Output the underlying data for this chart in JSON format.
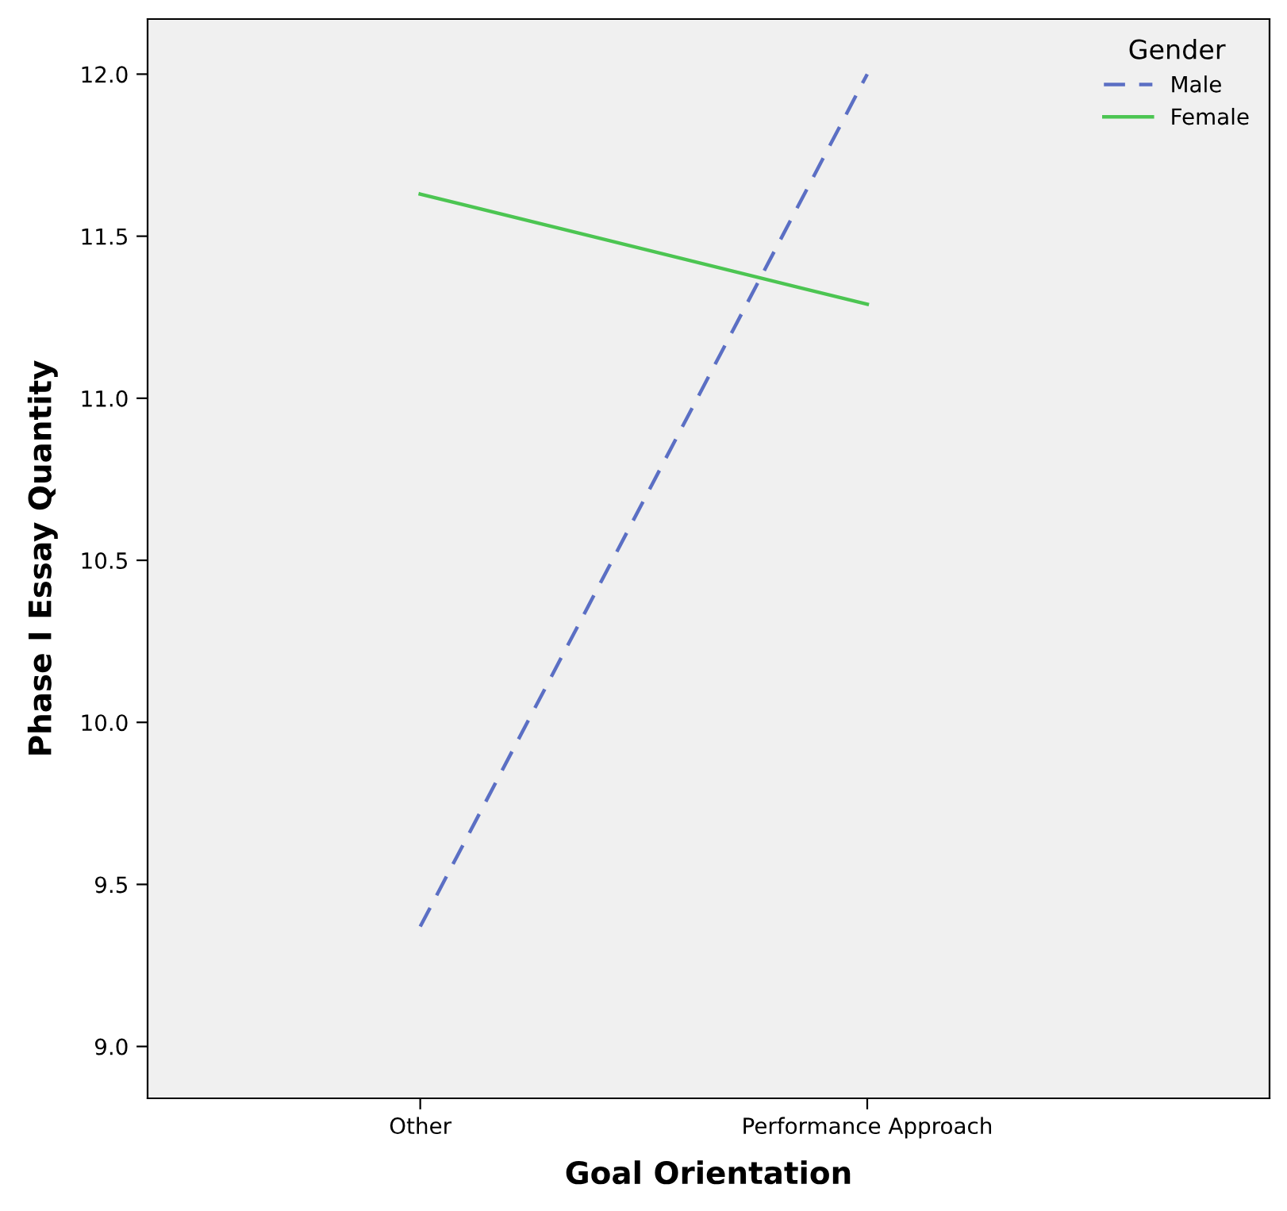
{
  "chart_data": {
    "type": "line",
    "xlabel": "Goal Orientation",
    "ylabel": "Phase I Essay Quantity",
    "legend_title": "Gender",
    "categories": [
      "Other",
      "Performance Approach"
    ],
    "series": [
      {
        "name": "Male",
        "color": "#5b6fc4",
        "values": [
          9.37,
          12.0
        ],
        "line_style": "dashed"
      },
      {
        "name": "Female",
        "color": "#4cc552",
        "values": [
          11.63,
          11.29
        ],
        "line_style": "solid"
      }
    ],
    "ylim": [
      8.84,
      12.17
    ],
    "yticks": [
      {
        "value": 9.0,
        "label": "9.0"
      },
      {
        "value": 9.5,
        "label": "9.5"
      },
      {
        "value": 10.0,
        "label": "10.0"
      },
      {
        "value": 10.5,
        "label": "10.5"
      },
      {
        "value": 11.0,
        "label": "11.0"
      },
      {
        "value": 11.5,
        "label": "11.5"
      },
      {
        "value": 12.0,
        "label": "12.0"
      }
    ],
    "grid": false,
    "legend": "top right",
    "marker": "none"
  }
}
